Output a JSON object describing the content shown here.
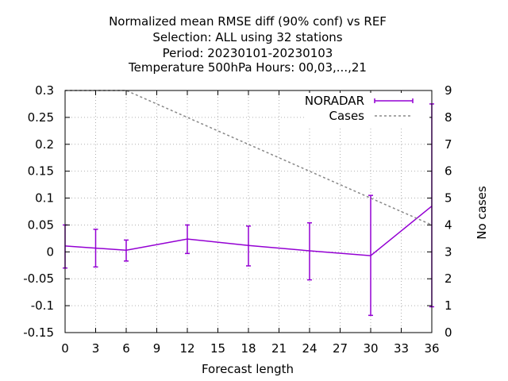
{
  "chart_data": {
    "type": "line",
    "title_lines": [
      "Normalized mean RMSE diff (90% conf) vs REF",
      "Selection: ALL using    32 stations",
      "Period: 20230101-20230103",
      "Temperature 500hPa   Hours:  00,03,...,21"
    ],
    "xlabel": "Forecast length",
    "ylabel": "",
    "y2label": "No cases",
    "xlim": [
      0,
      36
    ],
    "ylim": [
      -0.15,
      0.3
    ],
    "y2lim": [
      0,
      9
    ],
    "x_ticks": [
      0,
      3,
      6,
      9,
      12,
      15,
      18,
      21,
      24,
      27,
      30,
      33,
      36
    ],
    "y_ticks": [
      -0.15,
      -0.1,
      -0.05,
      0,
      0.05,
      0.1,
      0.15,
      0.2,
      0.25,
      0.3
    ],
    "y_tick_labels": [
      "-0.15",
      "-0.1",
      "-0.05",
      "0",
      "0.05",
      "0.1",
      "0.15",
      "0.2",
      "0.25",
      "0.3"
    ],
    "y2_ticks": [
      0,
      1,
      2,
      3,
      4,
      5,
      6,
      7,
      8,
      9
    ],
    "grid": true,
    "legend_position": "top-right",
    "series": [
      {
        "name": "NORADAR",
        "color": "#9400d3",
        "style": "errorbars",
        "axis": "y",
        "x": [
          0,
          3,
          6,
          12,
          18,
          24,
          30,
          36
        ],
        "y": [
          0.011,
          0.007,
          0.003,
          0.024,
          0.012,
          0.002,
          -0.007,
          0.085
        ],
        "ylow": [
          -0.03,
          -0.028,
          -0.017,
          -0.003,
          -0.026,
          -0.052,
          -0.118,
          -0.102
        ],
        "yhigh": [
          0.05,
          0.042,
          0.022,
          0.05,
          0.048,
          0.054,
          0.105,
          0.275
        ]
      },
      {
        "name": "Cases",
        "color": "#888888",
        "style": "dashed",
        "axis": "y2",
        "x": [
          0,
          6,
          12,
          18,
          24,
          30,
          36
        ],
        "y": [
          9,
          9,
          8,
          7,
          6,
          5,
          4
        ]
      }
    ]
  }
}
